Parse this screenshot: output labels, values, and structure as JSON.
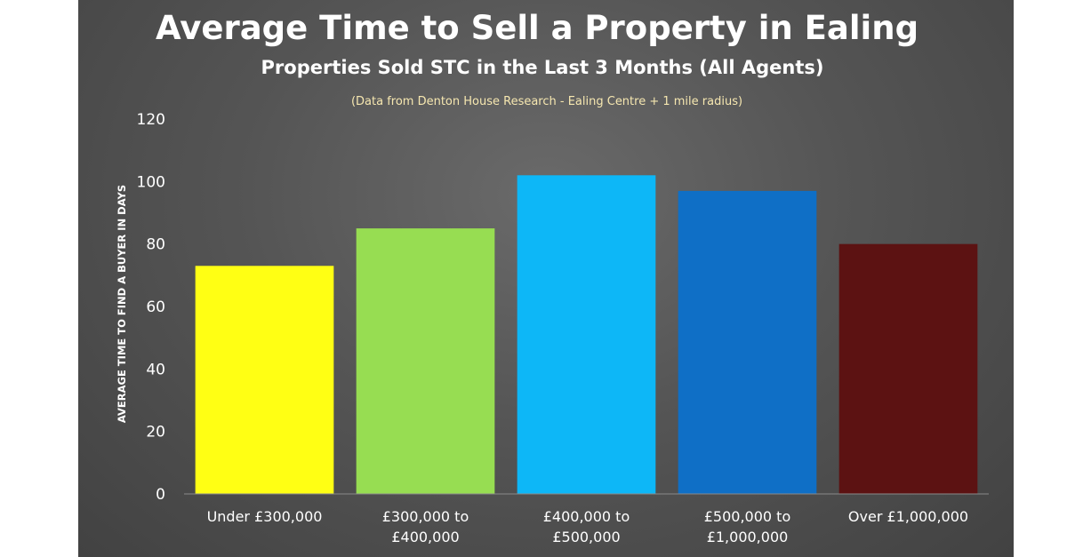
{
  "chart_data": {
    "type": "bar",
    "title": "Average Time to Sell a Property in Ealing",
    "subtitle": "Properties Sold STC in the Last 3 Months (All Agents)",
    "note": "(Data from Denton House Research - Ealing Centre + 1 mile radius)",
    "ylabel": "AVERAGE TIME TO FIND A BUYER IN DAYS",
    "xlabel": "",
    "ylim": [
      0,
      120
    ],
    "yticks": [
      0,
      20,
      40,
      60,
      80,
      100,
      120
    ],
    "grid": false,
    "categories": [
      [
        "Under £300,000"
      ],
      [
        "£300,000 to",
        "£400,000"
      ],
      [
        "£400,000 to",
        "£500,000"
      ],
      [
        "£500,000 to",
        "£1,000,000"
      ],
      [
        "Over £1,000,000"
      ]
    ],
    "values": [
      73,
      85,
      102,
      97,
      80
    ],
    "colors": [
      "#ffff14",
      "#97dd52",
      "#0db7f7",
      "#0f6fc6",
      "#5c1212"
    ],
    "background_color": "#555555"
  }
}
